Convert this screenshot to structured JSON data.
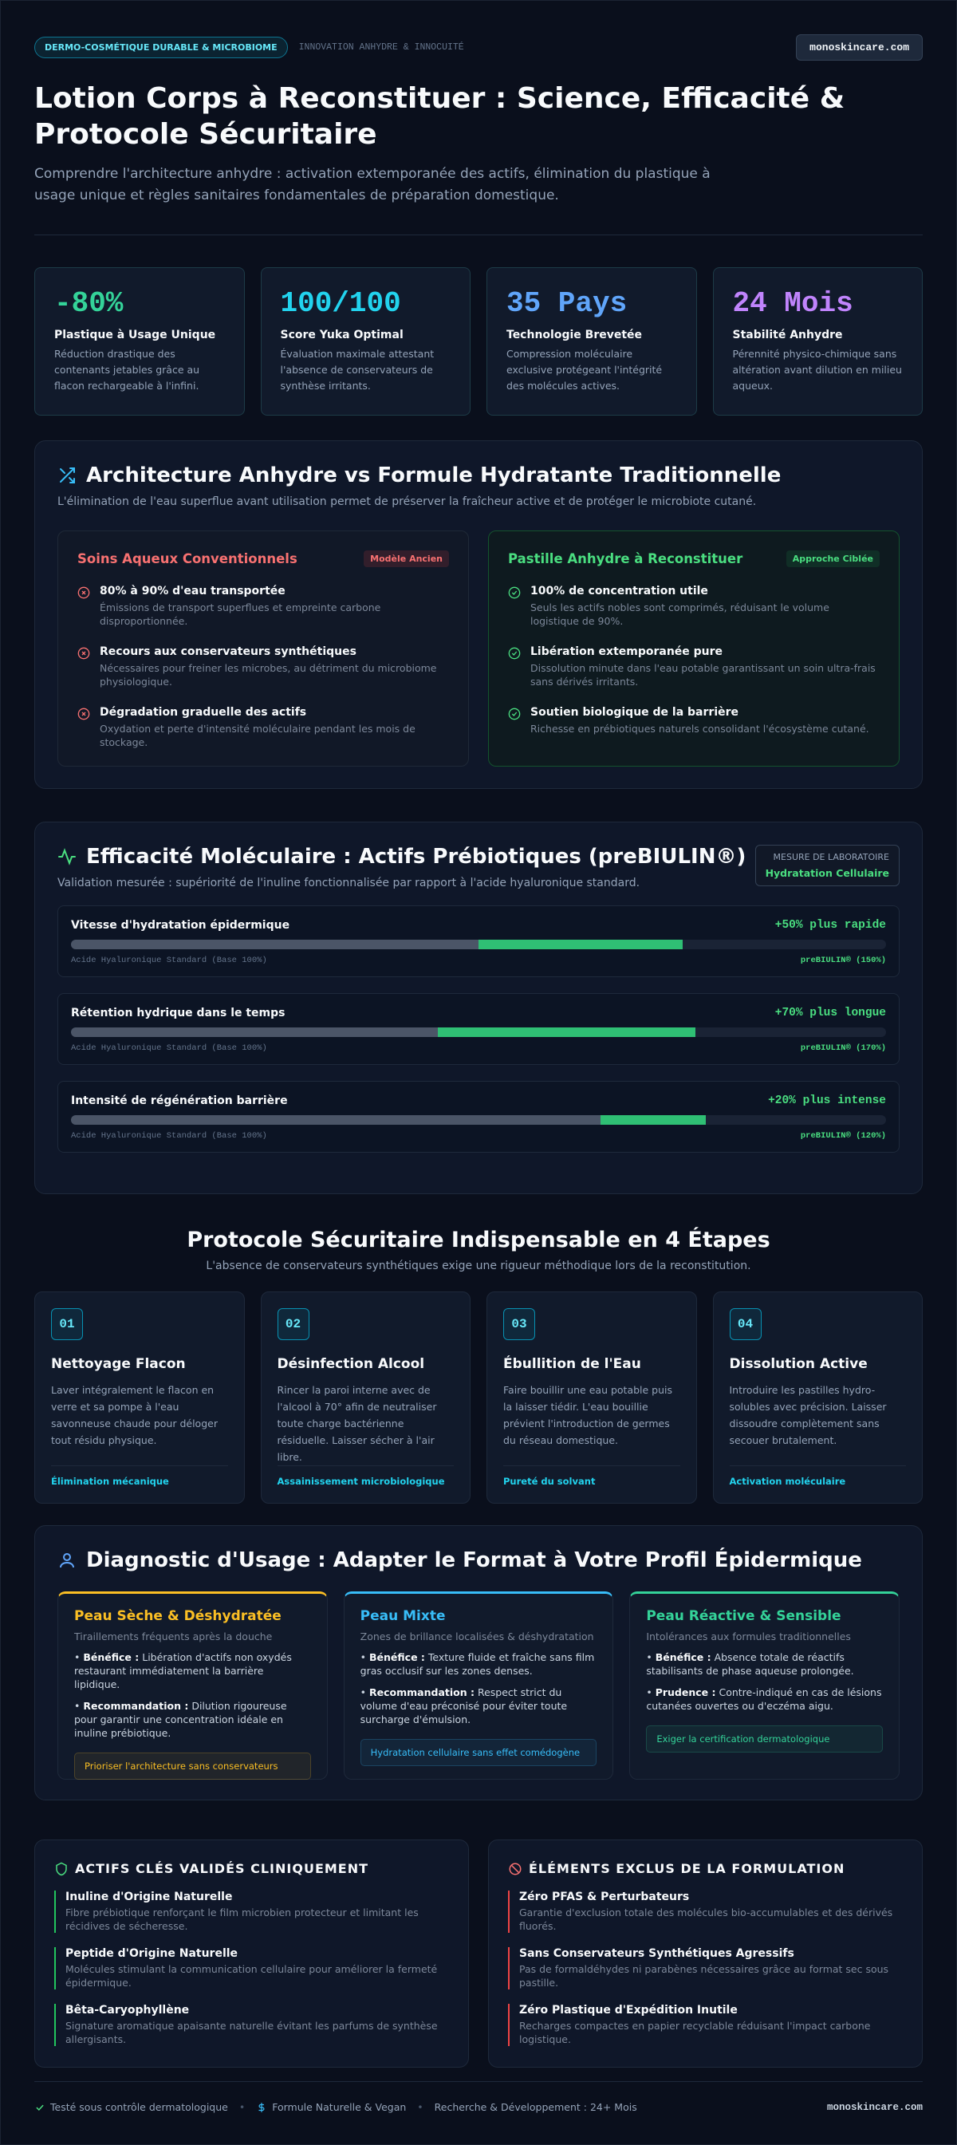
{
  "header": {
    "badge": "DERMO-COSMÉTIQUE DURABLE & MICROBIOME",
    "tagline": "INNOVATION ANHYDRE & INNOCUITÉ",
    "domain": "monoskincare.com",
    "title": "Lotion Corps à Reconstituer : Science, Efficacité & Protocole Sécuritaire",
    "subtitle": "Comprendre l'architecture anhydre : activation extemporanée des actifs, élimination du plastique à usage unique et règles sanitaires fondamentales de préparation domestique."
  },
  "stats": [
    {
      "value": "-80%",
      "label": "Plastique à Usage Unique",
      "desc": "Réduction drastique des contenants jetables grâce au flacon rechargeable à l'infini.",
      "color": "#34d399"
    },
    {
      "value": "100/100",
      "label": "Score Yuka Optimal",
      "desc": "Évaluation maximale attestant l'absence de conservateurs de synthèse irritants.",
      "color": "#22d3ee"
    },
    {
      "value": "35 Pays",
      "label": "Technologie Brevetée",
      "desc": "Compression moléculaire exclusive protégeant l'intégrité des molécules actives.",
      "color": "#60a5fa"
    },
    {
      "value": "24 Mois",
      "label": "Stabilité Anhydre",
      "desc": "Pérennité physico-chimique sans altération avant dilution en milieu aqueux.",
      "color": "#c084fc"
    }
  ],
  "architecture": {
    "title": "Architecture Anhydre vs Formule Hydratante Traditionnelle",
    "subtitle": "L'élimination de l'eau superflue avant utilisation permet de préserver la fraîcheur active et de protéger le microbiote cutané.",
    "conventional": {
      "title": "Soins Aqueux Conventionnels",
      "tag": "Modèle Ancien",
      "items": [
        {
          "title": "80% à 90% d'eau transportée",
          "desc": "Émissions de transport superflues et empreinte carbone disproportionnée."
        },
        {
          "title": "Recours aux conservateurs synthétiques",
          "desc": "Nécessaires pour freiner les microbes, au détriment du microbiome physiologique."
        },
        {
          "title": "Dégradation graduelle des actifs",
          "desc": "Oxydation et perte d'intensité moléculaire pendant les mois de stockage."
        }
      ]
    },
    "anhydrous": {
      "title": "Pastille Anhydre à Reconstituer",
      "tag": "Approche Ciblée",
      "items": [
        {
          "title": "100% de concentration utile",
          "desc": "Seuls les actifs nobles sont comprimés, réduisant le volume logistique de 90%."
        },
        {
          "title": "Libération extemporanée pure",
          "desc": "Dissolution minute dans l'eau potable garantissant un soin ultra-frais sans dérivés irritants."
        },
        {
          "title": "Soutien biologique de la barrière",
          "desc": "Richesse en prébiotiques naturels consolidant l'écosystème cutané."
        }
      ]
    }
  },
  "efficacy": {
    "title": "Efficacité Moléculaire : Actifs Prébiotiques (preBIULIN®)",
    "subtitle": "Validation mesurée : supériorité de l'inuline fonctionnalisée par rapport à l'acide hyaluronique standard.",
    "lab_label": "MESURE DE LABORATOIRE",
    "lab_value": "Hydratation Cellulaire",
    "bars": [
      {
        "label": "Vitesse d'hydratation épidermique",
        "gain": "+50% plus rapide",
        "base_label": "Acide Hyaluronique Standard (Base 100%)",
        "base_value": 100,
        "value_label": "preBIULIN® (150%)",
        "value": 150,
        "xlim": [
          0,
          200
        ]
      },
      {
        "label": "Rétention hydrique dans le temps",
        "gain": "+70% plus longue",
        "base_label": "Acide Hyaluronique Standard (Base 100%)",
        "base_value": 100,
        "value_label": "preBIULIN® (170%)",
        "value": 170,
        "xlim": [
          0,
          222
        ]
      },
      {
        "label": "Intensité de régénération barrière",
        "gain": "+20% plus intense",
        "base_label": "Acide Hyaluronique Standard (Base 100%)",
        "base_value": 100,
        "value_label": "preBIULIN® (120%)",
        "value": 120,
        "xlim": [
          0,
          154
        ]
      }
    ]
  },
  "protocol": {
    "title": "Protocole Sécuritaire Indispensable en 4 Étapes",
    "subtitle": "L'absence de conservateurs synthétiques exige une rigueur méthodique lors de la reconstitution.",
    "steps": [
      {
        "number": "01",
        "title": "Nettoyage Flacon",
        "desc": "Laver intégralement le flacon en verre et sa pompe à l'eau savonneuse chaude pour déloger tout résidu physique.",
        "footer": "Élimination mécanique"
      },
      {
        "number": "02",
        "title": "Désinfection Alcool",
        "desc": "Rincer la paroi interne avec de l'alcool à 70° afin de neutraliser toute charge bactérienne résiduelle. Laisser sécher à l'air libre.",
        "footer": "Assainissement microbiologique"
      },
      {
        "number": "03",
        "title": "Ébullition de l'Eau",
        "desc": "Faire bouillir une eau potable puis la laisser tiédir. L'eau bouillie prévient l'introduction de germes du réseau domestique.",
        "footer": "Pureté du solvant"
      },
      {
        "number": "04",
        "title": "Dissolution Active",
        "desc": "Introduire les pastilles hydro-solubles avec précision. Laisser dissoudre complètement sans secouer brutalement.",
        "footer": "Activation moléculaire"
      }
    ]
  },
  "diagnostic": {
    "title": "Diagnostic d'Usage : Adapter le Format à Votre Profil Épidermique",
    "profiles": [
      {
        "title": "Peau Sèche & Déshydratée",
        "subtitle": "Tiraillements fréquents après la douche",
        "color": "#fbbf24",
        "points": [
          {
            "label": "Bénéfice :",
            "text": "Libération d'actifs non oxydés restaurant immédiatement la barrière lipidique."
          },
          {
            "label": "Recommandation :",
            "text": "Dilution rigoureuse pour garantir une concentration idéale en inuline prébiotique."
          }
        ],
        "note": "Prioriser l'architecture sans conservateurs"
      },
      {
        "title": "Peau Mixte",
        "subtitle": "Zones de brillance localisées & déshydratation",
        "color": "#38bdf8",
        "points": [
          {
            "label": "Bénéfice :",
            "text": "Texture fluide et fraîche sans film gras occlusif sur les zones denses."
          },
          {
            "label": "Recommandation :",
            "text": "Respect strict du volume d'eau préconisé pour éviter toute surcharge d'émulsion."
          }
        ],
        "note": "Hydratation cellulaire sans effet comédogène"
      },
      {
        "title": "Peau Réactive & Sensible",
        "subtitle": "Intolérances aux formules traditionnelles",
        "color": "#34d399",
        "points": [
          {
            "label": "Bénéfice :",
            "text": "Absence totale de réactifs stabilisants de phase aqueuse prolongée."
          },
          {
            "label": "Prudence :",
            "text": "Contre-indiqué en cas de lésions cutanées ouvertes ou d'eczéma aigu."
          }
        ],
        "note": "Exiger la certification dermatologique"
      }
    ]
  },
  "actives": {
    "title": "ACTIFS CLÉS VALIDÉS CLINIQUEMENT",
    "items": [
      {
        "title": "Inuline d'Origine Naturelle",
        "desc": "Fibre prébiotique renforçant le film microbien protecteur et limitant les récidives de sécheresse."
      },
      {
        "title": "Peptide d'Origine Naturelle",
        "desc": "Molécules stimulant la communication cellulaire pour améliorer la fermeté épidermique."
      },
      {
        "title": "Bêta-Caryophyllène",
        "desc": "Signature aromatique apaisante naturelle évitant les parfums de synthèse allergisants."
      }
    ]
  },
  "excluded": {
    "title": "ÉLÉMENTS EXCLUS DE LA FORMULATION",
    "items": [
      {
        "title": "Zéro PFAS & Perturbateurs",
        "desc": "Garantie d'exclusion totale des molécules bio-accumulables et des dérivés fluorés."
      },
      {
        "title": "Sans Conservateurs Synthétiques Agressifs",
        "desc": "Pas de formaldéhydes ni parabènes nécessaires grâce au format sec sous pastille."
      },
      {
        "title": "Zéro Plastique d'Expédition Inutile",
        "desc": "Recharges compactes en papier recyclable réduisant l'impact carbone logistique."
      }
    ]
  },
  "footer": {
    "items": [
      "Testé sous contrôle dermatologique",
      "Formule Naturelle & Vegan",
      "Recherche & Développement : 24+ Mois"
    ],
    "domain": "monoskincare.com"
  }
}
